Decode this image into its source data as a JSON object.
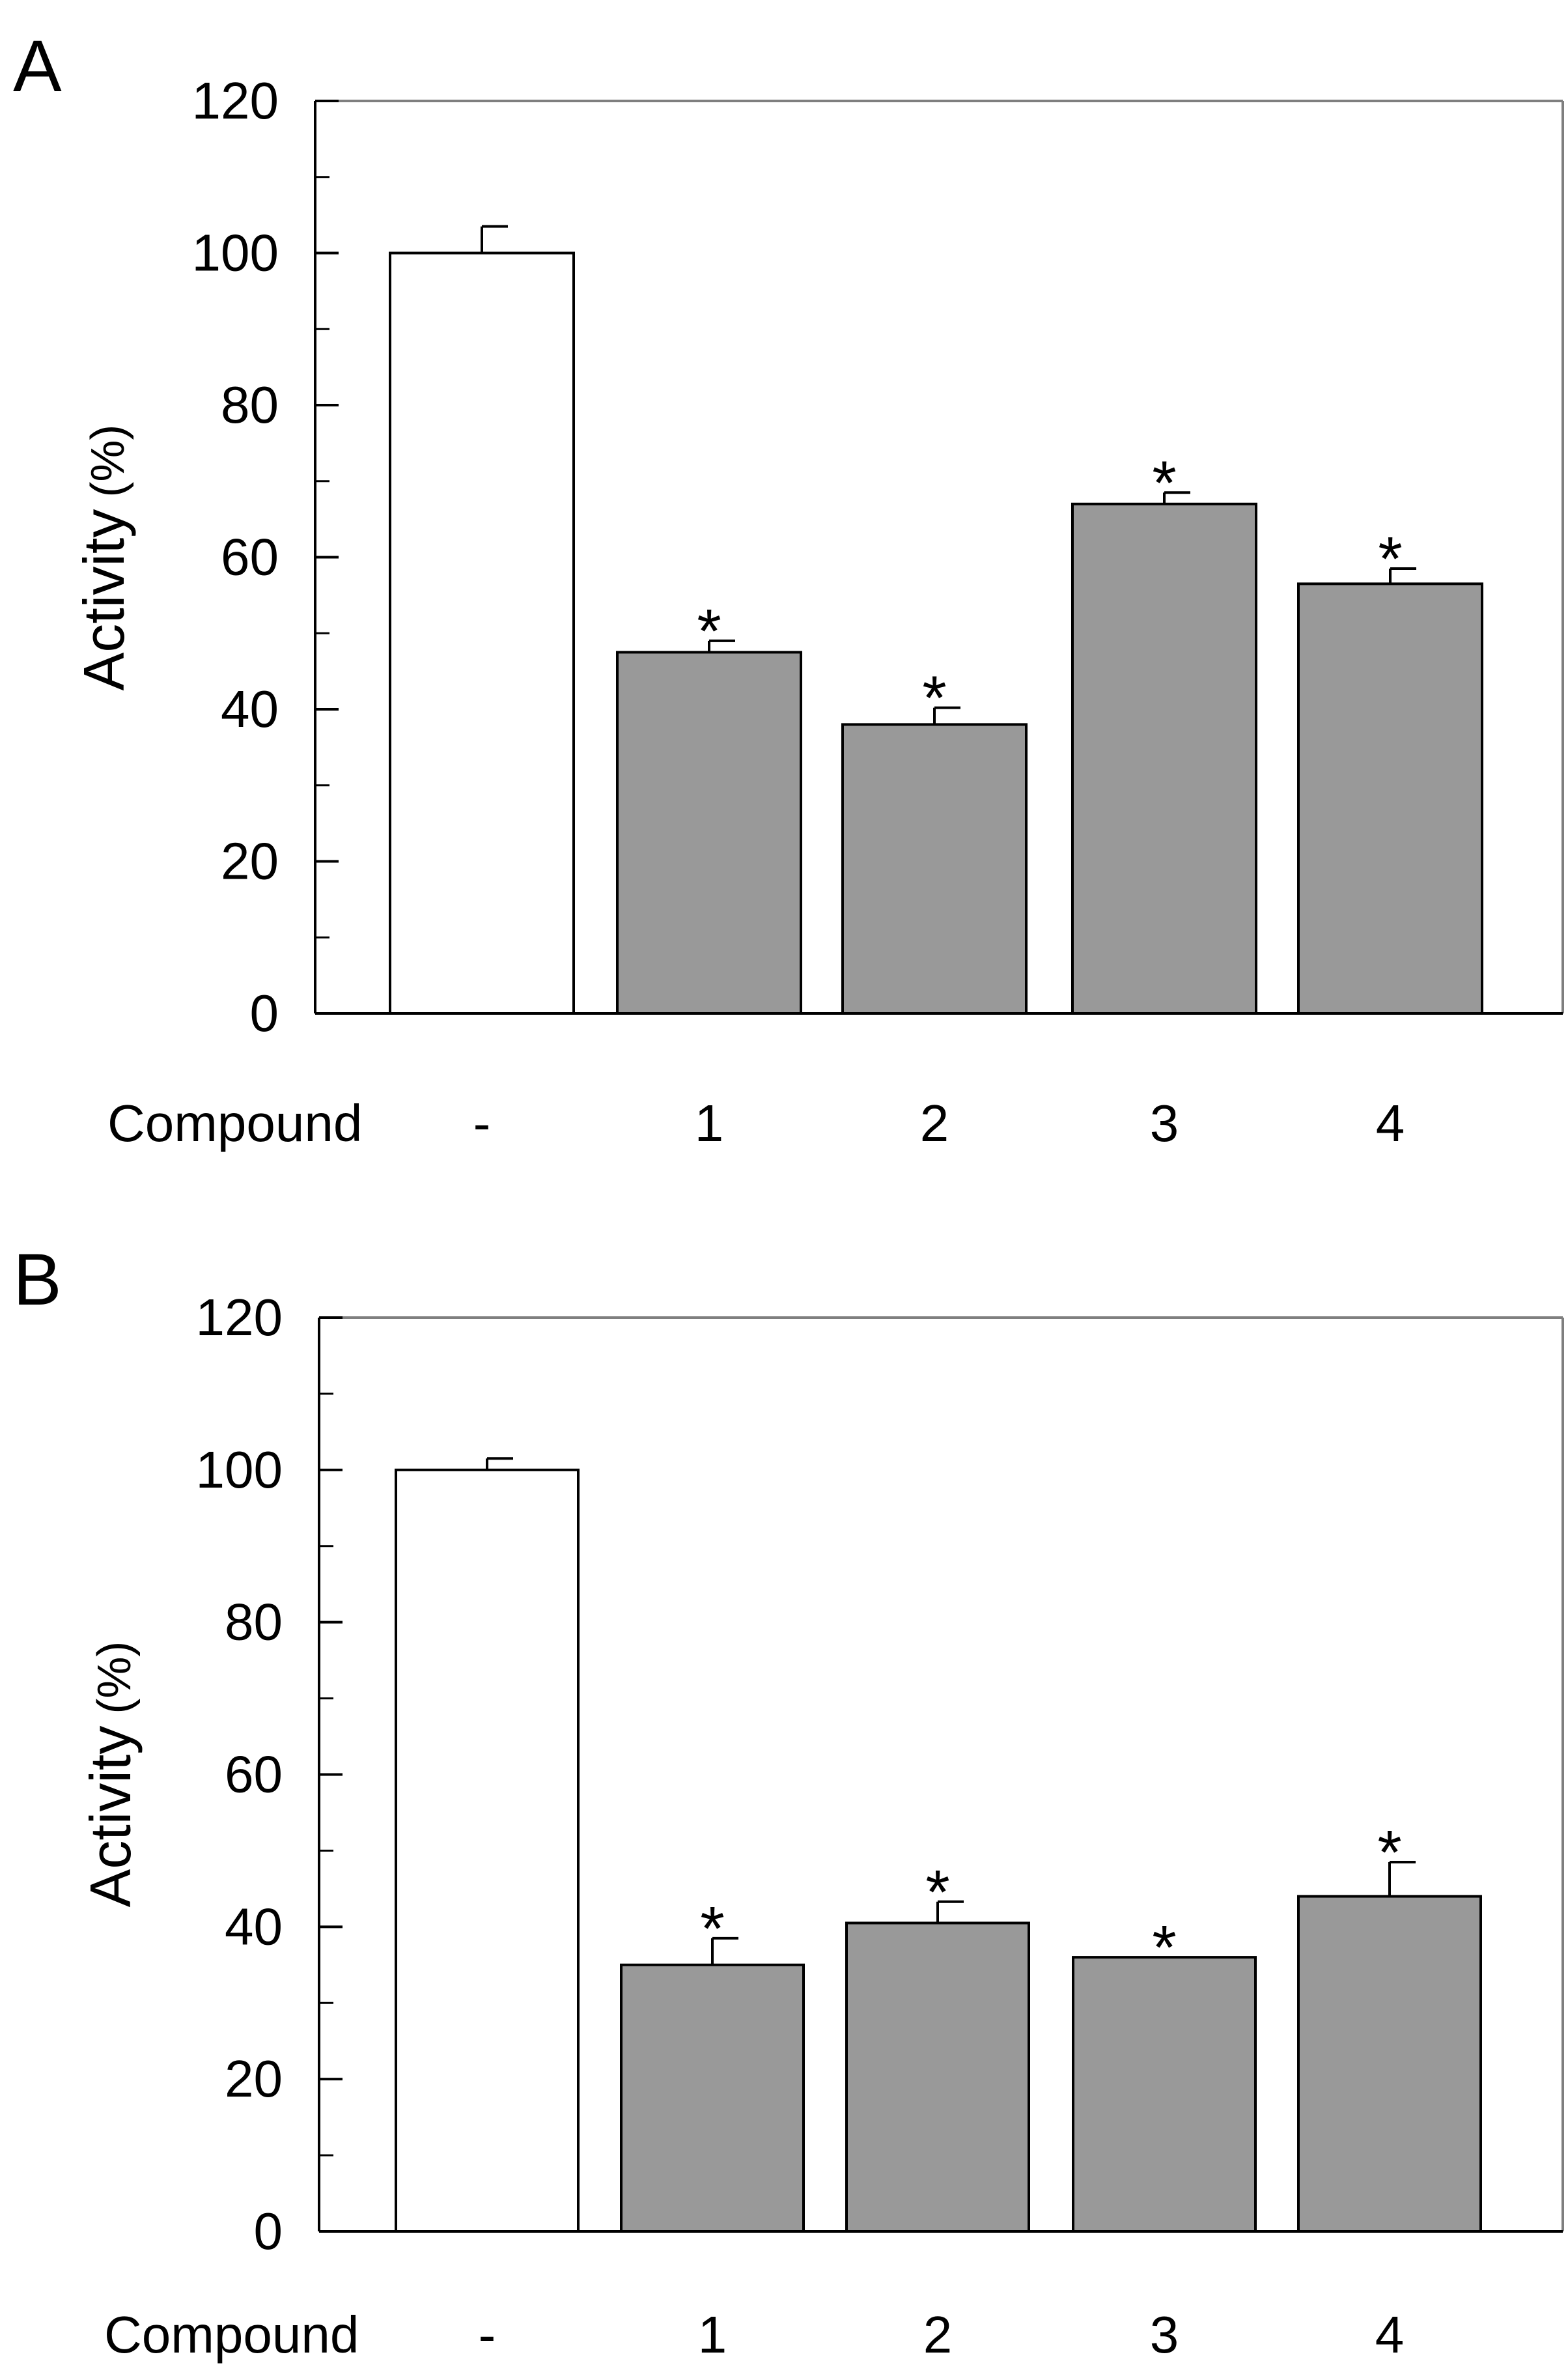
{
  "figure": {
    "panels": [
      "A",
      "B"
    ]
  },
  "colors": {
    "control_bar": "#ffffff",
    "treated_bar": "#999999",
    "stroke": "#000000",
    "frame": "#7f7f7f"
  },
  "chart_data": [
    {
      "type": "bar",
      "panel_label": "A",
      "ylabel": "Activity (%)",
      "ylabel_main": "Activity",
      "ylabel_unit": "(%)",
      "xlabel": "Compound",
      "categories": [
        "-",
        "1",
        "2",
        "3",
        "4"
      ],
      "values": [
        100,
        47.5,
        38,
        67,
        56.5
      ],
      "errors": [
        3.5,
        1.5,
        2.2,
        1.5,
        2.0
      ],
      "significance": [
        "",
        "*",
        "*",
        "*",
        "*"
      ],
      "ylim": [
        0,
        120
      ],
      "yticks": [
        0,
        20,
        40,
        60,
        80,
        100,
        120
      ],
      "ytick_labels": [
        "0",
        "20",
        "40",
        "60",
        "80",
        "100",
        "120"
      ],
      "minor_ytick_step": 10,
      "grid": false,
      "legend": "none"
    },
    {
      "type": "bar",
      "panel_label": "B",
      "ylabel": "Activity (%)",
      "ylabel_main": "Activity",
      "ylabel_unit": "(%)",
      "xlabel": "Compound",
      "categories": [
        "-",
        "1",
        "2",
        "3",
        "4"
      ],
      "values": [
        100,
        35,
        40.5,
        36,
        44
      ],
      "errors": [
        1.5,
        3.5,
        2.8,
        0,
        4.5
      ],
      "significance": [
        "",
        "*",
        "*",
        "*",
        "*"
      ],
      "ylim": [
        0,
        120
      ],
      "yticks": [
        0,
        20,
        40,
        60,
        80,
        100,
        120
      ],
      "ytick_labels": [
        "0",
        "20",
        "40",
        "60",
        "80",
        "100",
        "120"
      ],
      "minor_ytick_step": 10,
      "grid": false,
      "legend": "none"
    }
  ]
}
